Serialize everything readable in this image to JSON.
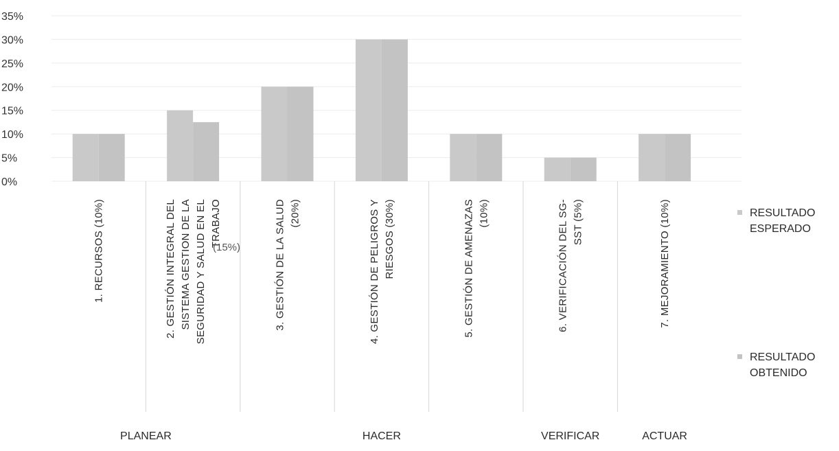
{
  "chart_data": {
    "type": "bar",
    "categories": [
      [
        "1. RECURSOS (10%)"
      ],
      [
        "2. GESTIÓN INTEGRAL DEL",
        "SISTEMA GESTION DE LA",
        "SEGURIDAD Y SALUD EN EL",
        "TRABAJO"
      ],
      [
        "3. GESTIÓN DE LA SALUD",
        "(20%)"
      ],
      [
        "4. GESTIÓN DE PELIGROS Y",
        "RIESGOS (30%)"
      ],
      [
        "5. GESTIÓN DE AMENAZAS",
        "(10%)"
      ],
      [
        "6. VERIFICACIÓN DEL SG-",
        "SST (5%)"
      ],
      [
        "7. MEJORAMIENTO  (10%)"
      ]
    ],
    "series": [
      {
        "name": "RESULTADO ESPERADO",
        "values": [
          10,
          15,
          20,
          30,
          10,
          5,
          10
        ]
      },
      {
        "name": "RESULTADO OBTENIDO",
        "values": [
          10,
          12.5,
          20,
          30,
          10,
          5,
          10
        ]
      }
    ],
    "y_ticks": [
      "0%",
      "5%",
      "10%",
      "15%",
      "20%",
      "25%",
      "30%",
      "35%"
    ],
    "ylim": [
      0,
      35
    ],
    "grid": true,
    "legend_position": "right",
    "annotation": "(15%)",
    "phases": [
      {
        "label": "PLANEAR",
        "categories": [
          0,
          1
        ]
      },
      {
        "label": "HACER",
        "categories": [
          2,
          3,
          4
        ]
      },
      {
        "label": "VERIFICAR",
        "categories": [
          5
        ]
      },
      {
        "label": "ACTUAR",
        "categories": [
          6
        ]
      }
    ],
    "colors": {
      "esperado": "#c9c9c9",
      "obtenido": "#c3c3c3",
      "grid": "#ebebeb",
      "separator": "#d6d6d6"
    }
  }
}
